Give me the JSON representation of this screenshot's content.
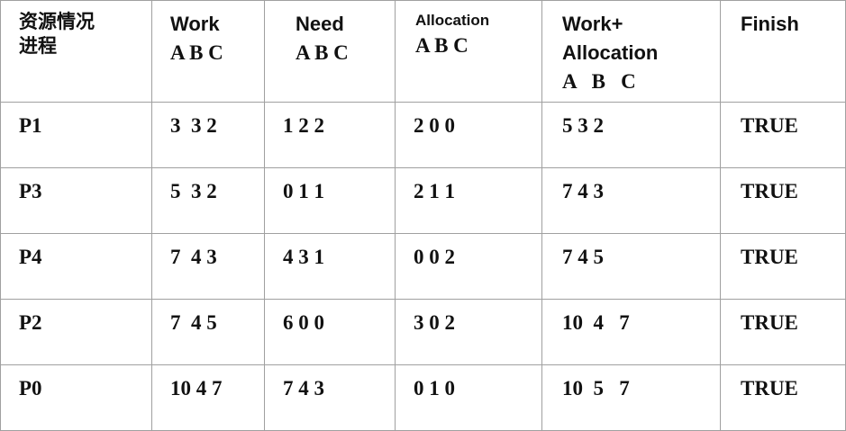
{
  "table": {
    "header": [
      [
        "资源情况",
        "进程"
      ],
      [
        "Work",
        "A B C"
      ],
      [
        "Need",
        "A B C"
      ],
      [
        "Allocation",
        "A B C"
      ],
      [
        "Work+",
        "Allocation",
        "A   B   C"
      ],
      [
        "Finish"
      ]
    ],
    "rows": [
      [
        "P1",
        "3  3 2",
        "1 2 2",
        "2 0 0",
        "5 3 2",
        "TRUE"
      ],
      [
        "P3",
        "5  3 2",
        "0 1 1",
        "2 1 1",
        "7 4 3",
        "TRUE"
      ],
      [
        "P4",
        "7  4 3",
        "4 3 1",
        "0 0 2",
        "7 4 5",
        "TRUE"
      ],
      [
        "P2",
        "7  4 5",
        "6 0 0",
        "3 0 2",
        "10  4   7",
        "TRUE"
      ],
      [
        "P0",
        "10 4 7",
        "7 4 3",
        "0 1 0",
        "10  5   7",
        "TRUE"
      ]
    ]
  }
}
